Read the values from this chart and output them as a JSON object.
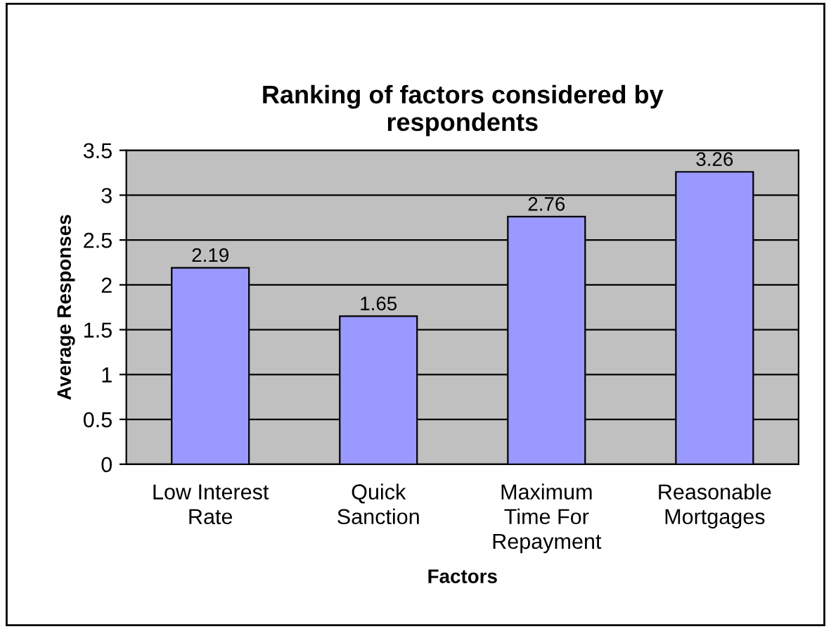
{
  "chart_data": {
    "type": "bar",
    "title": "Ranking of factors considered by\nrespondents",
    "xlabel": "Factors",
    "ylabel": "Average Responses",
    "categories": [
      "Low Interest\nRate",
      "Quick\nSanction",
      "Maximum\nTime For\nRepayment",
      "Reasonable\nMortgages"
    ],
    "values": [
      2.19,
      1.65,
      2.76,
      3.26
    ],
    "color": "#9999ff",
    "ylim": [
      0,
      3.5
    ],
    "yticks": [
      0,
      0.5,
      1,
      1.5,
      2,
      2.5,
      3,
      3.5
    ],
    "grid": "y",
    "data_labels": true
  }
}
